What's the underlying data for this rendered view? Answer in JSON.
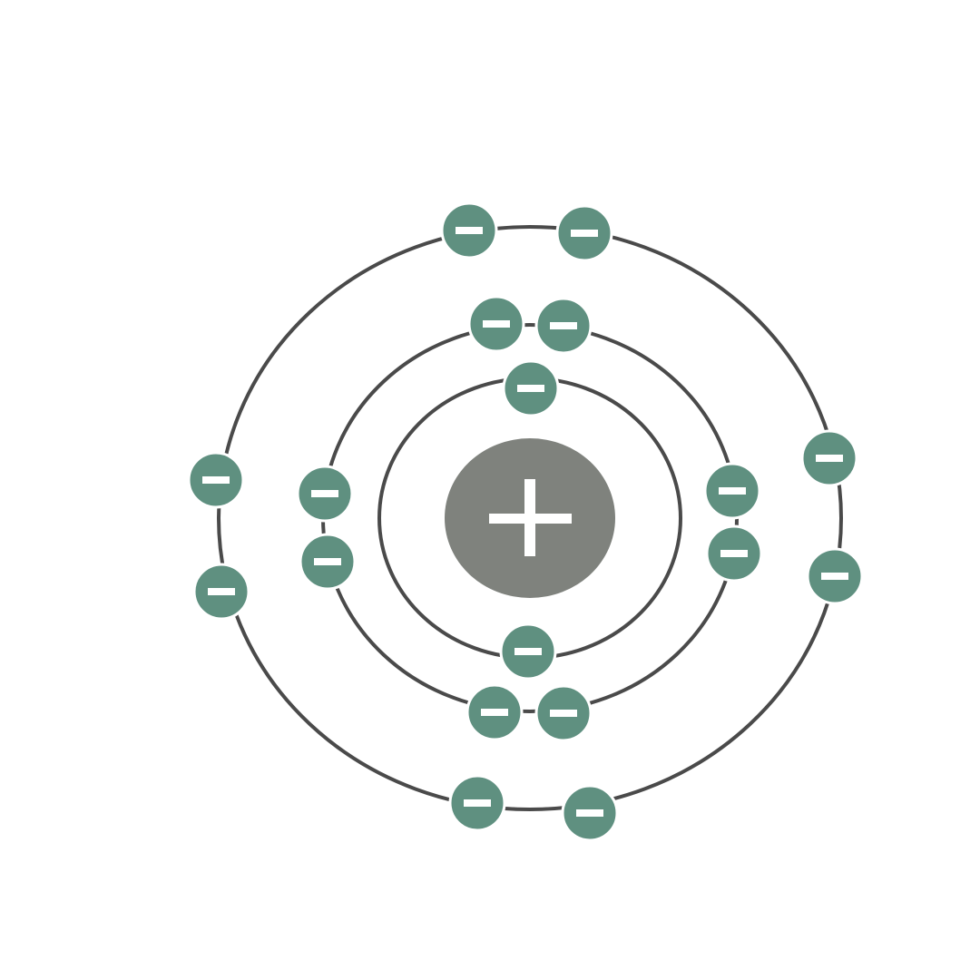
{
  "diagram": {
    "type": "bohr-atom-model",
    "colors": {
      "nucleus": "#7f827d",
      "electron": "#5f9080",
      "orbit": "#4a4a4a",
      "sign": "#ffffff"
    },
    "nucleus": {
      "charge_icon": "plus-icon"
    },
    "electron_icon": "minus-icon",
    "shells": [
      {
        "name": "shell-1",
        "electrons": 2
      },
      {
        "name": "shell-2",
        "electrons": 8
      },
      {
        "name": "shell-3",
        "electrons": 8
      }
    ]
  }
}
